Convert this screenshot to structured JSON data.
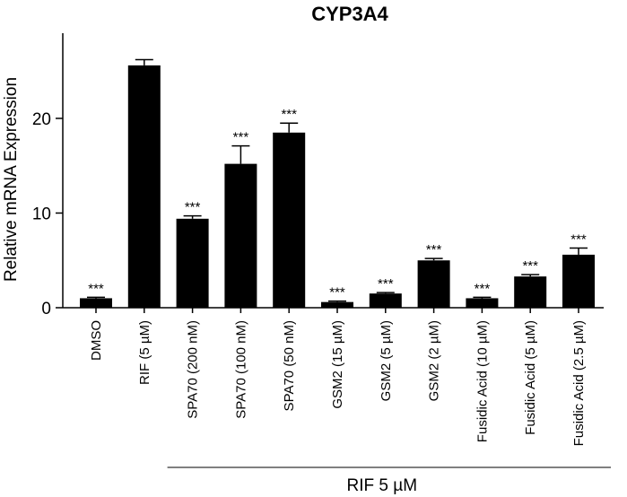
{
  "chart_data": {
    "type": "bar",
    "title": "CYP3A4",
    "ylabel": "Relative mRNA Expression",
    "xlabel": "",
    "ylim": [
      0,
      29
    ],
    "yticks": [
      0,
      10,
      20
    ],
    "categories": [
      "DMSO",
      "RIF (5 µM)",
      "SPA70 (200 nM)",
      "SPA70 (100 nM)",
      "SPA70 (50 nM)",
      "GSM2 (15 µM)",
      "GSM2 (5 µM)",
      "GSM2 (2 µM)",
      "Fusidic Acid (10 µM)",
      "Fusidic Acid (5 µM)",
      "Fusidic Acid (2.5 µM)"
    ],
    "values": [
      1.0,
      25.6,
      9.4,
      15.2,
      18.5,
      0.6,
      1.5,
      5.0,
      1.0,
      3.3,
      5.6
    ],
    "errors": [
      0.1,
      0.6,
      0.3,
      1.9,
      1.0,
      0.1,
      0.1,
      0.2,
      0.1,
      0.2,
      0.7
    ],
    "annotations": [
      "***",
      "",
      "***",
      "***",
      "***",
      "***",
      "***",
      "***",
      "***",
      "***",
      "***"
    ],
    "bar_color": "#000000",
    "group_label": "RIF 5 µM",
    "grid": false,
    "legend": "none"
  }
}
